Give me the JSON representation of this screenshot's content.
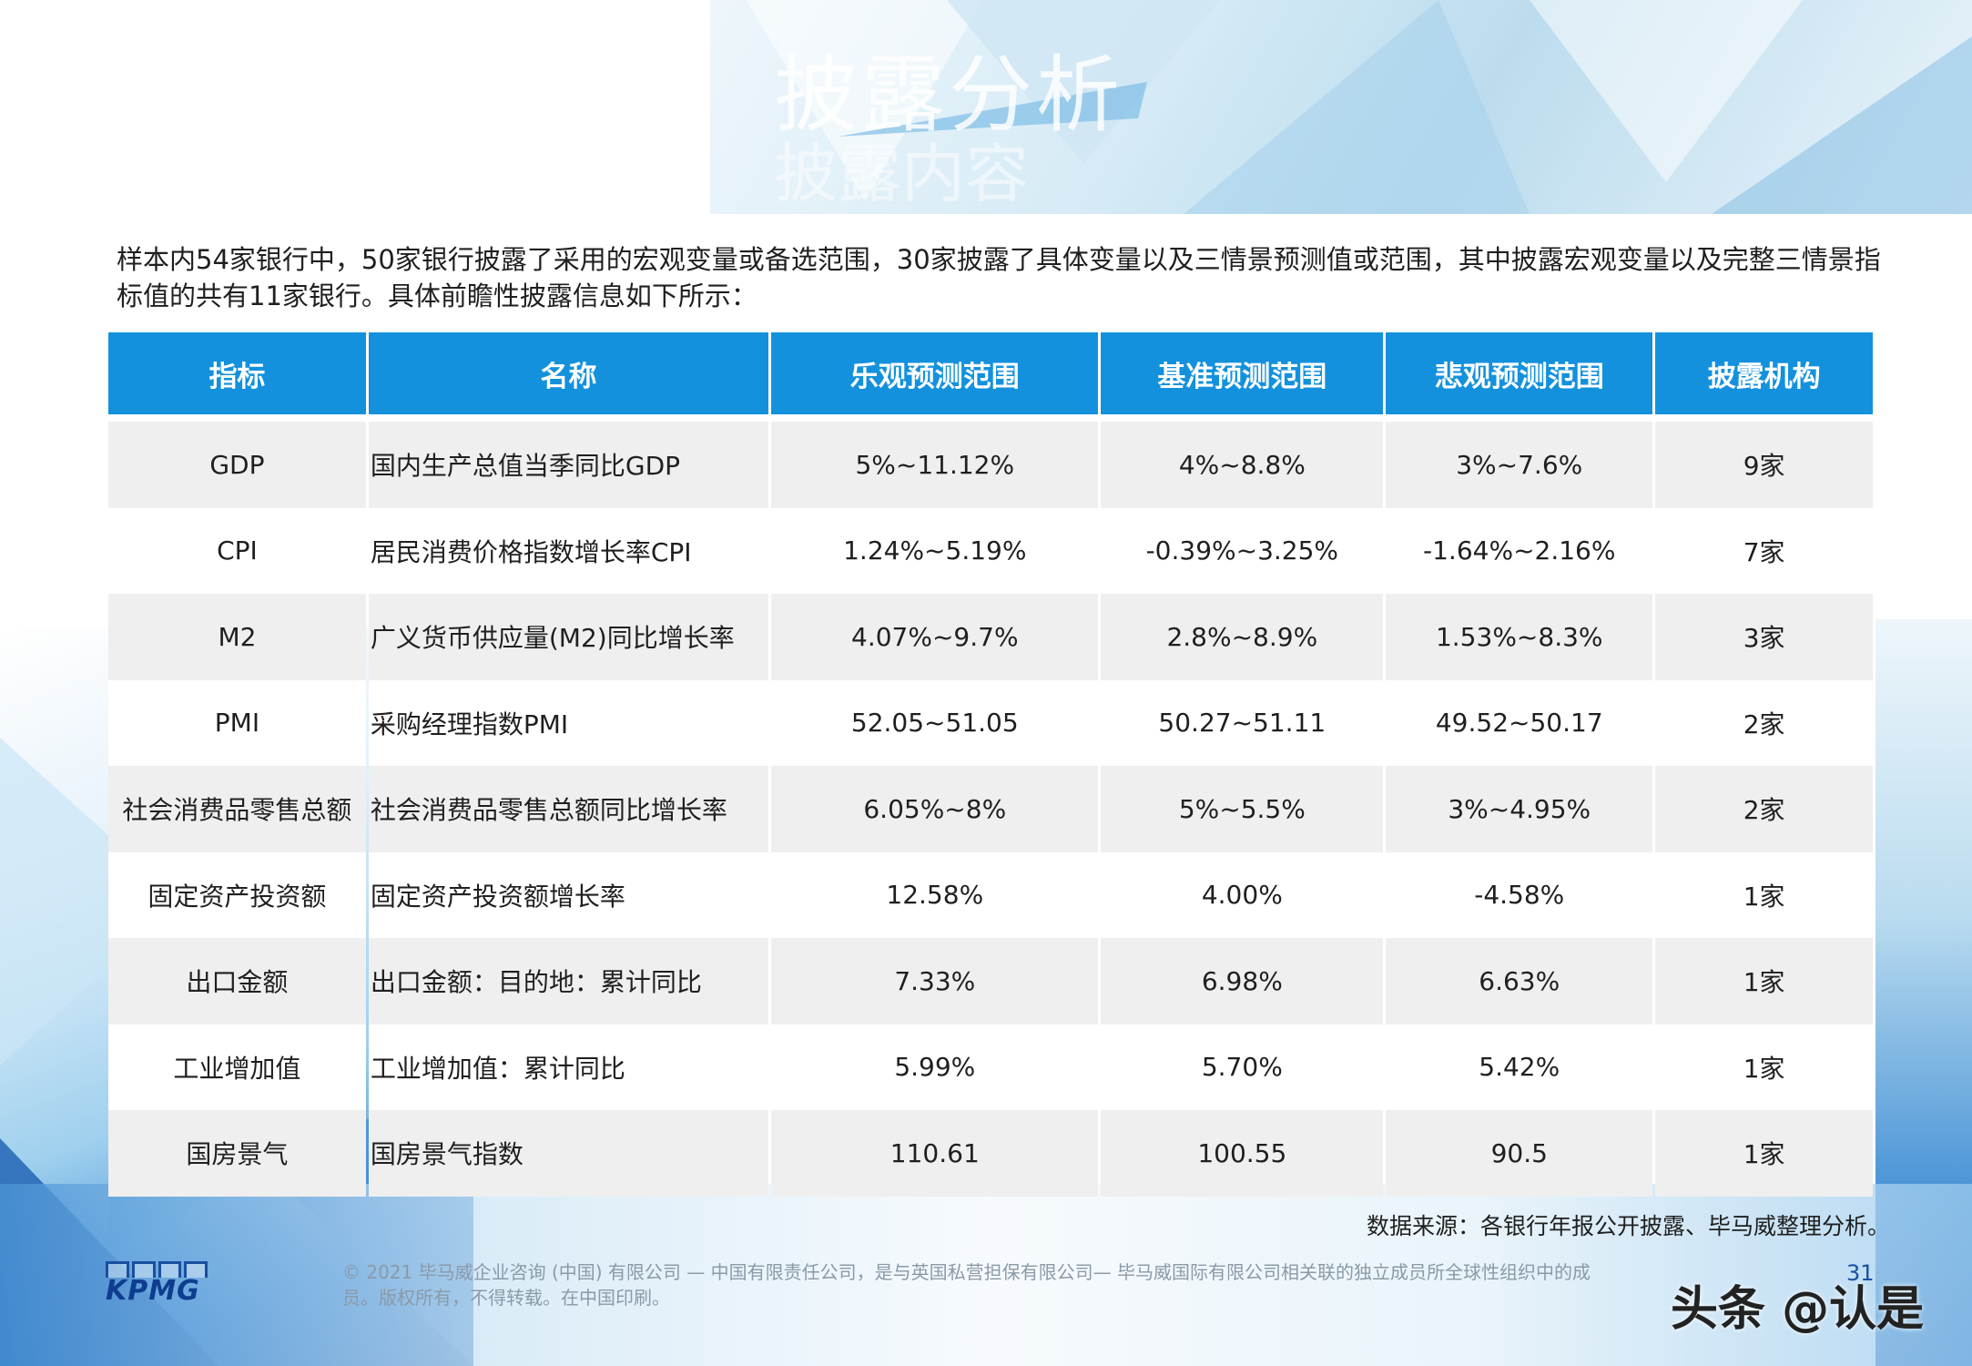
{
  "header": {
    "faded_title": "披露分析",
    "faded_subtitle": "披露内容"
  },
  "intro_text": "样本内54家银行中，50家银行披露了采用的宏观变量或备选范围，30家披露了具体变量以及三情景预测值或范围，其中披露宏观变量以及完整三情景指标值的共有11家银行。具体前瞻性披露信息如下所示：",
  "table": {
    "headers": [
      "指标",
      "名称",
      "乐观预测范围",
      "基准预测范围",
      "悲观预测范围",
      "披露机构"
    ],
    "rows": [
      [
        "GDP",
        "国内生产总值当季同比GDP",
        "5%~11.12%",
        "4%~8.8%",
        "3%~7.6%",
        "9家"
      ],
      [
        "CPI",
        "居民消费价格指数增长率CPI",
        "1.24%~5.19%",
        "-0.39%~3.25%",
        "-1.64%~2.16%",
        "7家"
      ],
      [
        "M2",
        "广义货币供应量(M2)同比增长率",
        "4.07%~9.7%",
        "2.8%~8.9%",
        "1.53%~8.3%",
        "3家"
      ],
      [
        "PMI",
        "采购经理指数PMI",
        "52.05~51.05",
        "50.27~51.11",
        "49.52~50.17",
        "2家"
      ],
      [
        "社会消费品零售总额",
        "社会消费品零售总额同比增长率",
        "6.05%~8%",
        "5%~5.5%",
        "3%~4.95%",
        "2家"
      ],
      [
        "固定资产投资额",
        "固定资产投资额增长率",
        "12.58%",
        "4.00%",
        "-4.58%",
        "1家"
      ],
      [
        "出口金额",
        "出口金额：目的地：累计同比",
        "7.33%",
        "6.98%",
        "6.63%",
        "1家"
      ],
      [
        "工业增加值",
        "工业增加值：累计同比",
        "5.99%",
        "5.70%",
        "5.42%",
        "1家"
      ],
      [
        "国房景气",
        "国房景气指数",
        "110.61",
        "100.55",
        "90.5",
        "1家"
      ]
    ]
  },
  "source_note": "数据来源：各银行年报公开披露、毕马威整理分析。",
  "footer": {
    "logo_text": "KPMG",
    "copyright_line1": "© 2021 毕马威企业咨询 (中国) 有限公司 — 中国有限责任公司，是与英国私营担保有限公司— 毕马威国际有限公司相关联的独立成员所全球性组织中的成",
    "copyright_line2": "员。版权所有，不得转载。在中国印刷。",
    "page_number": "31",
    "watermark": "头条 @认是"
  },
  "colors": {
    "header_blue": "#1391dd",
    "row_shade": "#efefef",
    "brand_blue": "#1a4fa0"
  }
}
